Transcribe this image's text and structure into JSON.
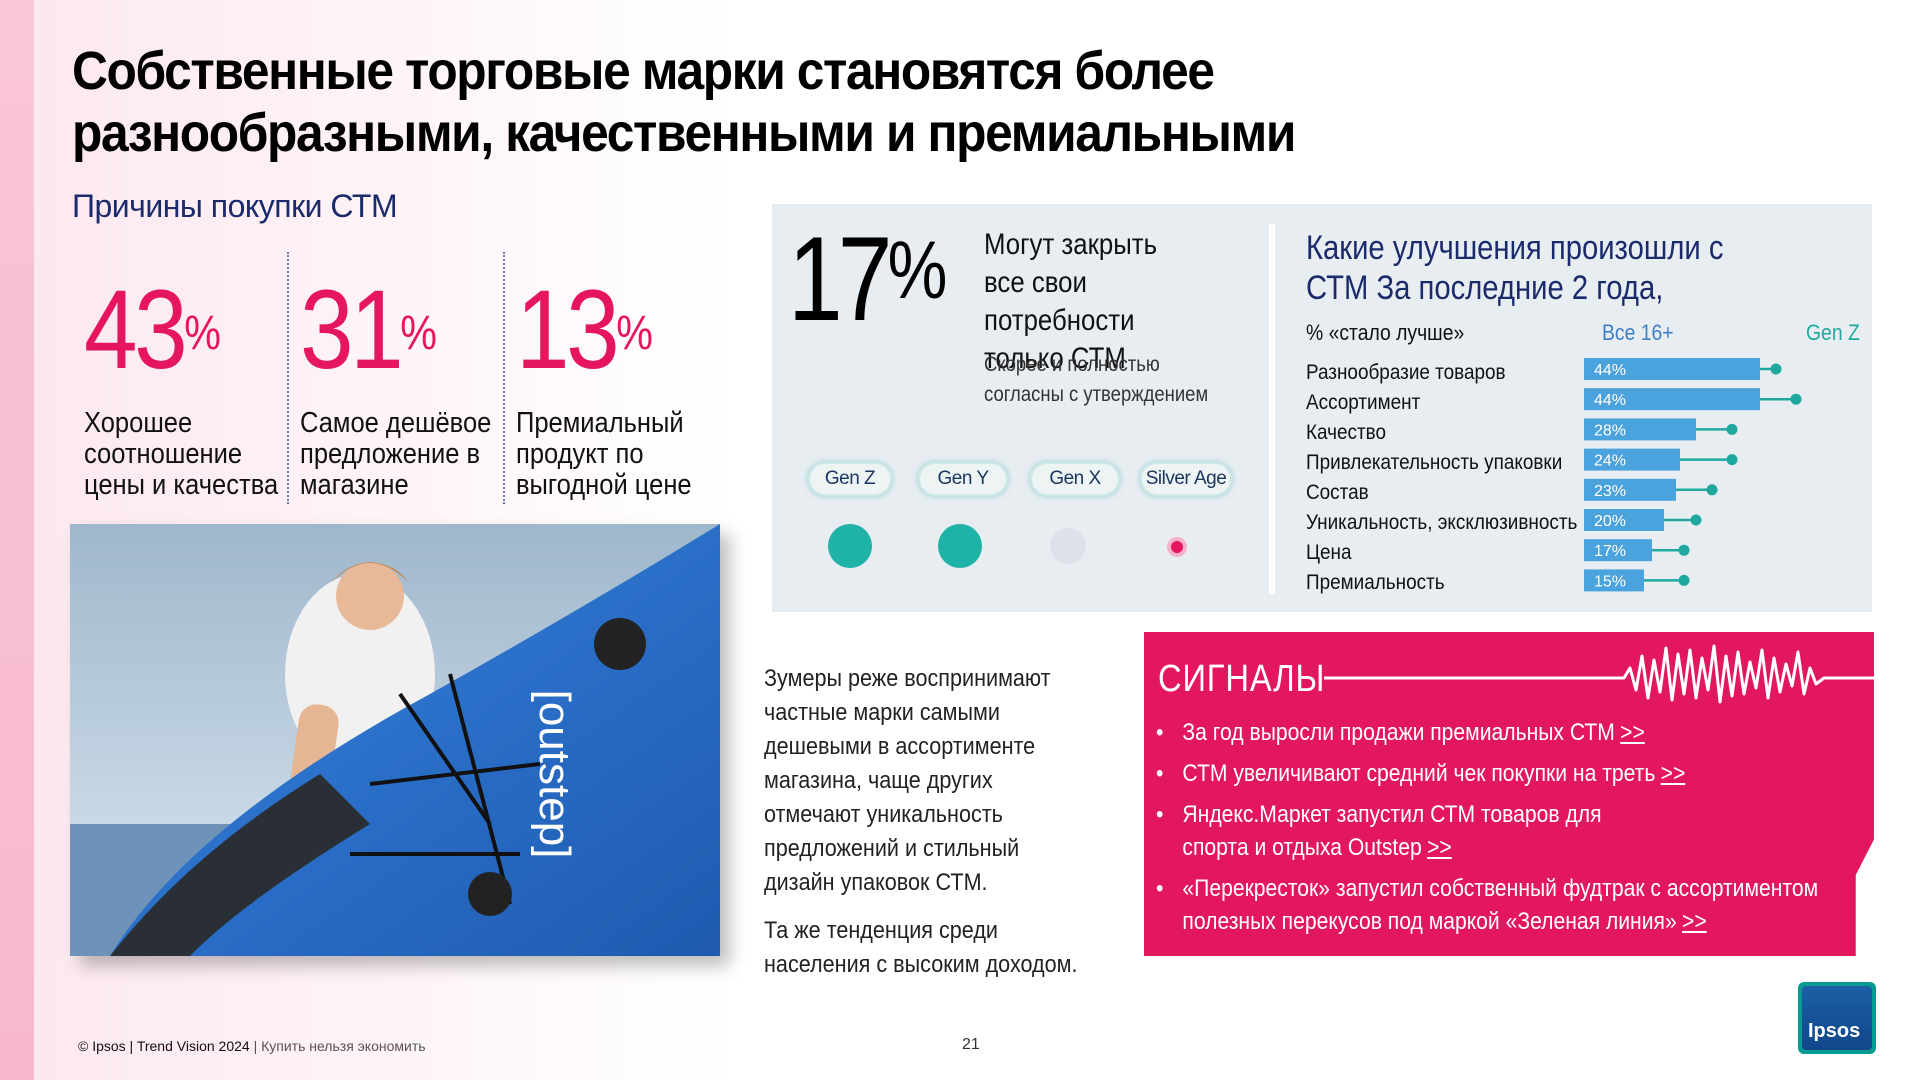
{
  "title": "Собственные торговые марки становятся более разнообразными, качественными и премиальными",
  "reasons": {
    "title": "Причины покупки СТМ",
    "items": [
      {
        "value": "43",
        "unit": "%",
        "text": "Хорошее соотношение цены и качества"
      },
      {
        "value": "31",
        "unit": "%",
        "text": "Самое дешёвое предложение в магазине"
      },
      {
        "value": "13",
        "unit": "%",
        "text": "Премиальный продукт по выгодной цене"
      }
    ]
  },
  "photo": {
    "board_text": "[outstep]"
  },
  "panel": {
    "big_value": "17",
    "big_unit": "%",
    "headline": "Могут закрыть все свои потребности только СТМ",
    "subline": "Скорее и полностью согласны с утверждением",
    "generations": [
      {
        "label": "Gen Z",
        "dot_size": "large",
        "color": "#1fb3a8"
      },
      {
        "label": "Gen Y",
        "dot_size": "large",
        "color": "#1fb3a8"
      },
      {
        "label": "Gen X",
        "dot_size": "neutral",
        "color": "#dde2ea"
      },
      {
        "label": "Silver Age",
        "dot_size": "small",
        "color": "#e3175f"
      }
    ]
  },
  "improvements": {
    "title": "Какие улучшения произошли с СТМ За последние 2 года,",
    "measure_label": "% «стало лучше»",
    "col_all": "Все 16+",
    "col_genz": "Gen Z"
  },
  "chart_data": {
    "type": "bar",
    "categories": [
      "Разнообразие товаров",
      "Ассортимент",
      "Качество",
      "Привлекательность упаковки",
      "Состав",
      "Уникальность, эксклюзивность",
      "Цена",
      "Премиальность"
    ],
    "series": [
      {
        "name": "Все 16+",
        "values": [
          44,
          44,
          28,
          24,
          23,
          20,
          17,
          15
        ],
        "color": "#4aa3dc"
      },
      {
        "name": "Gen Z",
        "values": [
          48,
          53,
          37,
          37,
          32,
          28,
          25,
          25
        ],
        "color": "#1fa99e"
      }
    ],
    "value_suffix": "%"
  },
  "signals": {
    "title": "СИГНАЛЫ",
    "items": [
      {
        "text": "За год выросли продажи премиальных СТМ",
        "link": ">>"
      },
      {
        "text": "СТМ увеличивают средний чек покупки на треть",
        "link": ">>"
      },
      {
        "text": "Яндекс.Маркет запустил СТМ товаров для спорта и отдыха Outstep",
        "link": ">>"
      },
      {
        "text": "«Перекресток» запустил собственный фудтрак с ассортиментом полезных перекусов под маркой «Зеленая линия»",
        "link": ">>"
      }
    ]
  },
  "zoomers": [
    "Зумеры реже воспринимают частные марки самыми дешевыми в ассортименте магазина, чаще других отмечают уникальность предложений и стильный дизайн упаковок СТМ.",
    "Та же тенденция среди населения с высоким доходом."
  ],
  "footer": {
    "copyright": "© Ipsos | Trend Vision 2024",
    "section": "| Купить нельзя экономить",
    "page": "21"
  },
  "logo": {
    "text": "Ipsos"
  },
  "colors": {
    "accent": "#e3175f",
    "navy": "#1b2a6b",
    "teal": "#1fa99e",
    "bar": "#4aa3dc"
  }
}
